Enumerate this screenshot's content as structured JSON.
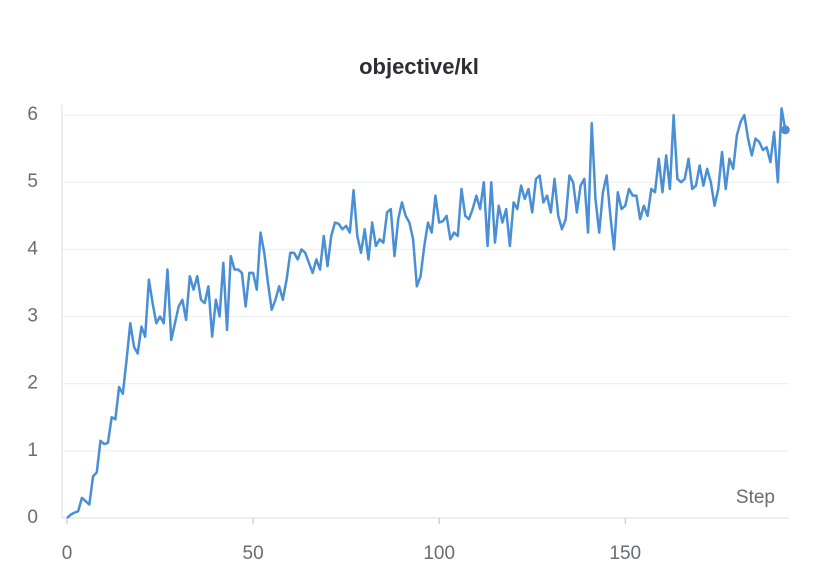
{
  "chart_data": {
    "type": "line",
    "title": "objective/kl",
    "x_label": "Step",
    "x": [
      0,
      1,
      2,
      3,
      4,
      5,
      6,
      7,
      8,
      9,
      10,
      11,
      12,
      13,
      14,
      15,
      16,
      17,
      18,
      19,
      20,
      21,
      22,
      23,
      24,
      25,
      26,
      27,
      28,
      29,
      30,
      31,
      32,
      33,
      34,
      35,
      36,
      37,
      38,
      39,
      40,
      41,
      42,
      43,
      44,
      45,
      46,
      47,
      48,
      49,
      50,
      51,
      52,
      53,
      54,
      55,
      56,
      57,
      58,
      59,
      60,
      61,
      62,
      63,
      64,
      65,
      66,
      67,
      68,
      69,
      70,
      71,
      72,
      73,
      74,
      75,
      76,
      77,
      78,
      79,
      80,
      81,
      82,
      83,
      84,
      85,
      86,
      87,
      88,
      89,
      90,
      91,
      92,
      93,
      94,
      95,
      96,
      97,
      98,
      99,
      100,
      101,
      102,
      103,
      104,
      105,
      106,
      107,
      108,
      109,
      110,
      111,
      112,
      113,
      114,
      115,
      116,
      117,
      118,
      119,
      120,
      121,
      122,
      123,
      124,
      125,
      126,
      127,
      128,
      129,
      130,
      131,
      132,
      133,
      134,
      135,
      136,
      137,
      138,
      139,
      140,
      141,
      142,
      143,
      144,
      145,
      146,
      147,
      148,
      149,
      150,
      151,
      152,
      153,
      154,
      155,
      156,
      157,
      158,
      159,
      160,
      161,
      162,
      163,
      164,
      165,
      166,
      167,
      168,
      169,
      170,
      171,
      172,
      173,
      174,
      175,
      176,
      177,
      178,
      179,
      180,
      181,
      182,
      183,
      184,
      185,
      186,
      187,
      188,
      189,
      190,
      191,
      192,
      193
    ],
    "series": [
      {
        "name": "objective/kl",
        "color": "#4a8fd6",
        "values": [
          0.0,
          0.05,
          0.08,
          0.1,
          0.3,
          0.25,
          0.2,
          0.62,
          0.68,
          1.15,
          1.1,
          1.12,
          1.5,
          1.47,
          1.95,
          1.85,
          2.35,
          2.9,
          2.55,
          2.45,
          2.85,
          2.7,
          3.55,
          3.2,
          2.9,
          3.0,
          2.9,
          3.7,
          2.65,
          2.9,
          3.15,
          3.25,
          2.95,
          3.6,
          3.4,
          3.6,
          3.25,
          3.2,
          3.45,
          2.7,
          3.25,
          3.0,
          3.8,
          2.8,
          3.9,
          3.7,
          3.7,
          3.65,
          3.15,
          3.65,
          3.65,
          3.4,
          4.25,
          3.95,
          3.5,
          3.1,
          3.25,
          3.45,
          3.25,
          3.55,
          3.95,
          3.95,
          3.85,
          4.0,
          3.95,
          3.8,
          3.65,
          3.85,
          3.7,
          4.2,
          3.75,
          4.2,
          4.4,
          4.38,
          4.3,
          4.35,
          4.25,
          4.88,
          4.2,
          3.95,
          4.3,
          3.85,
          4.4,
          4.05,
          4.15,
          4.1,
          4.55,
          4.6,
          3.9,
          4.45,
          4.7,
          4.5,
          4.4,
          4.15,
          3.45,
          3.6,
          4.05,
          4.4,
          4.25,
          4.8,
          4.4,
          4.42,
          4.5,
          4.15,
          4.25,
          4.2,
          4.9,
          4.5,
          4.45,
          4.6,
          4.8,
          4.6,
          5.0,
          4.05,
          5.0,
          4.1,
          4.65,
          4.4,
          4.6,
          4.05,
          4.7,
          4.6,
          4.95,
          4.75,
          4.9,
          4.55,
          5.05,
          5.1,
          4.7,
          4.8,
          4.55,
          5.05,
          4.5,
          4.3,
          4.45,
          5.1,
          5.0,
          4.55,
          4.95,
          5.05,
          4.25,
          5.88,
          4.75,
          4.25,
          4.85,
          5.1,
          4.5,
          4.0,
          4.85,
          4.6,
          4.65,
          4.9,
          4.8,
          4.8,
          4.45,
          4.65,
          4.5,
          4.9,
          4.85,
          5.35,
          4.85,
          5.4,
          4.9,
          6.0,
          5.05,
          5.0,
          5.05,
          5.35,
          4.9,
          4.95,
          5.25,
          4.95,
          5.2,
          5.0,
          4.65,
          4.9,
          5.45,
          4.9,
          5.35,
          5.2,
          5.7,
          5.9,
          6.0,
          5.65,
          5.4,
          5.65,
          5.6,
          5.48,
          5.52,
          5.3,
          5.75,
          5.0,
          6.1,
          5.78
        ]
      }
    ],
    "xlim": [
      0,
      194
    ],
    "xticks": [
      0,
      50,
      100,
      150
    ],
    "ylim": [
      0,
      6.15
    ],
    "yticks": [
      0,
      1,
      2,
      3,
      4,
      5,
      6
    ],
    "grid": true
  }
}
